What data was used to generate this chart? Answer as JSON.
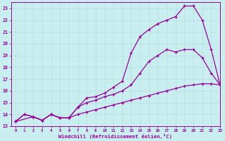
{
  "bg_color": "#c8eef0",
  "line_color": "#990099",
  "grid_color": "#b8dede",
  "xlabel": "Windchill (Refroidissement éolien,°C)",
  "xlabel_color": "#990099",
  "xlim": [
    -0.5,
    23
  ],
  "ylim": [
    13,
    23.5
  ],
  "yticks": [
    13,
    14,
    15,
    16,
    17,
    18,
    19,
    20,
    21,
    22,
    23
  ],
  "xticks": [
    0,
    1,
    2,
    3,
    4,
    5,
    6,
    7,
    8,
    9,
    10,
    11,
    12,
    13,
    14,
    15,
    16,
    17,
    18,
    19,
    20,
    21,
    22,
    23
  ],
  "curve1_x": [
    0,
    1,
    2,
    3,
    4,
    5,
    6,
    7,
    8,
    9,
    10,
    11,
    12,
    13,
    14,
    15,
    16,
    17,
    18,
    19,
    20,
    21,
    22,
    23
  ],
  "curve1_y": [
    13.4,
    14.0,
    13.8,
    13.5,
    14.0,
    13.7,
    13.7,
    14.6,
    15.4,
    15.5,
    15.8,
    16.3,
    16.8,
    19.2,
    20.6,
    21.2,
    21.7,
    22.0,
    22.3,
    23.2,
    23.2,
    22.0,
    19.5,
    16.5
  ],
  "curve2_x": [
    0,
    2,
    3,
    4,
    5,
    6,
    7,
    8,
    9,
    10,
    11,
    12,
    13,
    14,
    15,
    16,
    17,
    18,
    19,
    20,
    21,
    22,
    23
  ],
  "curve2_y": [
    13.4,
    13.8,
    13.5,
    14.0,
    13.7,
    13.7,
    14.6,
    15.0,
    15.2,
    15.5,
    15.7,
    16.0,
    16.5,
    17.5,
    18.5,
    19.0,
    19.5,
    19.3,
    19.5,
    19.5,
    18.8,
    17.5,
    16.5
  ],
  "curve3_x": [
    0,
    1,
    2,
    3,
    4,
    5,
    6,
    7,
    8,
    9,
    10,
    11,
    12,
    13,
    14,
    15,
    16,
    17,
    18,
    19,
    20,
    21,
    22,
    23
  ],
  "curve3_y": [
    13.4,
    14.0,
    13.8,
    13.5,
    14.0,
    13.7,
    13.7,
    14.0,
    14.2,
    14.4,
    14.6,
    14.8,
    15.0,
    15.2,
    15.4,
    15.6,
    15.8,
    16.0,
    16.2,
    16.4,
    16.5,
    16.6,
    16.6,
    16.5
  ]
}
